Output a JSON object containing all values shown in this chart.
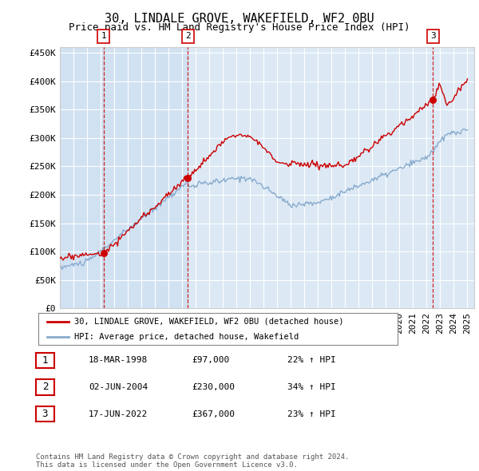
{
  "title": "30, LINDALE GROVE, WAKEFIELD, WF2 0BU",
  "subtitle": "Price paid vs. HM Land Registry's House Price Index (HPI)",
  "ylim": [
    0,
    460000
  ],
  "yticks": [
    0,
    50000,
    100000,
    150000,
    200000,
    250000,
    300000,
    350000,
    400000,
    450000
  ],
  "ytick_labels": [
    "£0",
    "£50K",
    "£100K",
    "£150K",
    "£200K",
    "£250K",
    "£300K",
    "£350K",
    "£400K",
    "£450K"
  ],
  "xlim_start": 1995.0,
  "xlim_end": 2025.5,
  "bg_color": "#dce9f5",
  "transactions": [
    {
      "date_num": 1998.21,
      "price": 97000,
      "label": "1"
    },
    {
      "date_num": 2004.42,
      "price": 230000,
      "label": "2"
    },
    {
      "date_num": 2022.46,
      "price": 367000,
      "label": "3"
    }
  ],
  "transaction_line_color": "#cc0000",
  "hpi_line_color": "#88aacc",
  "legend_label_red": "30, LINDALE GROVE, WAKEFIELD, WF2 0BU (detached house)",
  "legend_label_blue": "HPI: Average price, detached house, Wakefield",
  "table_rows": [
    {
      "num": "1",
      "date": "18-MAR-1998",
      "price": "£97,000",
      "hpi": "22% ↑ HPI"
    },
    {
      "num": "2",
      "date": "02-JUN-2004",
      "price": "£230,000",
      "hpi": "34% ↑ HPI"
    },
    {
      "num": "3",
      "date": "17-JUN-2022",
      "price": "£367,000",
      "hpi": "23% ↑ HPI"
    }
  ],
  "footer": "Contains HM Land Registry data © Crown copyright and database right 2024.\nThis data is licensed under the Open Government Licence v3.0.",
  "title_fontsize": 11,
  "subtitle_fontsize": 9,
  "tick_fontsize": 8,
  "font_family": "monospace"
}
